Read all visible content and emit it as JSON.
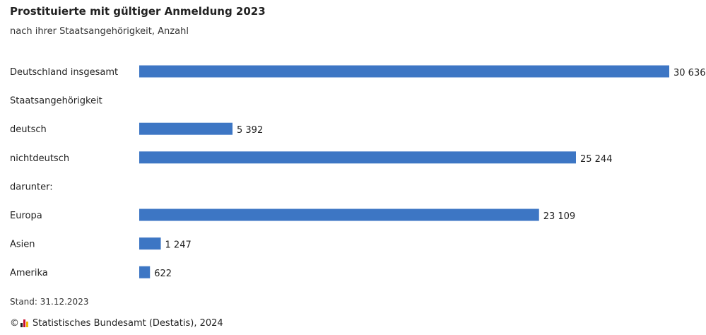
{
  "header": {
    "title": "Prostituierte mit gültiger Anmeldung 2023",
    "subtitle": "nach ihrer Staatsangehörigkeit, Anzahl"
  },
  "chart_data": {
    "type": "bar",
    "orientation": "horizontal",
    "title": "Prostituierte mit gültiger Anmeldung 2023",
    "subtitle": "nach ihrer Staatsangehörigkeit, Anzahl",
    "rows": [
      {
        "label": "Deutschland insgesamt",
        "value": 30636,
        "value_label": "30 636"
      },
      {
        "label": "Staatsangehörigkeit",
        "value": null,
        "value_label": ""
      },
      {
        "label": "deutsch",
        "value": 5392,
        "value_label": "5 392"
      },
      {
        "label": "nichtdeutsch",
        "value": 25244,
        "value_label": "25 244"
      },
      {
        "label": "darunter:",
        "value": null,
        "value_label": ""
      },
      {
        "label": "Europa",
        "value": 23109,
        "value_label": "23 109"
      },
      {
        "label": "Asien",
        "value": 1247,
        "value_label": "1 247"
      },
      {
        "label": "Amerika",
        "value": 622,
        "value_label": "622"
      }
    ],
    "xlim": [
      0,
      30636
    ],
    "grid": false,
    "legend": "none",
    "bar_color": "#3d76c4"
  },
  "footer": {
    "stand": "Stand: 31.12.2023",
    "copyright_symbol": "©",
    "source": "Statistisches Bundesamt (Destatis), 2024"
  },
  "colors": {
    "bar": "#3d76c4",
    "logo_red": "#c8102e",
    "logo_yellow": "#f2b705",
    "logo_black": "#222222"
  }
}
